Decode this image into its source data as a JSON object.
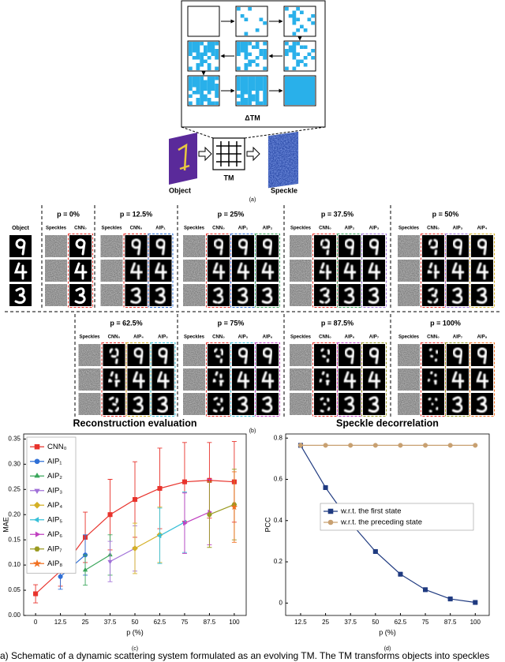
{
  "figure": {
    "a": {
      "delta_label": "ΔTM",
      "object_label": "Object",
      "tm_label": "TM",
      "speckle_label": "Speckle",
      "caption": "(a)"
    },
    "b": {
      "object_label": "Object",
      "caption": "(b)",
      "panels": [
        {
          "title": "p = 0%",
          "columns": [
            {
              "label": "Speckles",
              "color": "#000000"
            },
            {
              "label": "CNN₀",
              "color": "#e8332c"
            }
          ]
        },
        {
          "title": "p = 12.5%",
          "columns": [
            {
              "label": "Speckles",
              "color": "#000000"
            },
            {
              "label": "CNN₀",
              "color": "#e8332c"
            },
            {
              "label": "AIP₁",
              "color": "#2f6fd6"
            }
          ]
        },
        {
          "title": "p = 25%",
          "columns": [
            {
              "label": "Speckles",
              "color": "#000000"
            },
            {
              "label": "CNN₀",
              "color": "#e8332c"
            },
            {
              "label": "AIP₁",
              "color": "#2f6fd6"
            },
            {
              "label": "AIP₂",
              "color": "#3aa65b"
            }
          ]
        },
        {
          "title": "p = 37.5%",
          "columns": [
            {
              "label": "Speckles",
              "color": "#000000"
            },
            {
              "label": "CNN₀",
              "color": "#e8332c"
            },
            {
              "label": "AIP₂",
              "color": "#3aa65b"
            },
            {
              "label": "AIP₃",
              "color": "#a070d8"
            }
          ]
        },
        {
          "title": "p = 50%",
          "columns": [
            {
              "label": "Speckles",
              "color": "#000000"
            },
            {
              "label": "CNN₀",
              "color": "#e8332c"
            },
            {
              "label": "AIP₃",
              "color": "#a070d8"
            },
            {
              "label": "AIP₄",
              "color": "#d4b026"
            }
          ]
        },
        {
          "title": "p = 62.5%",
          "columns": [
            {
              "label": "Speckles",
              "color": "#000000"
            },
            {
              "label": "CNN₀",
              "color": "#e8332c"
            },
            {
              "label": "AIP₄",
              "color": "#d4b026"
            },
            {
              "label": "AIP₅",
              "color": "#38c0d8"
            }
          ]
        },
        {
          "title": "p = 75%",
          "columns": [
            {
              "label": "Speckles",
              "color": "#000000"
            },
            {
              "label": "CNN₀",
              "color": "#e8332c"
            },
            {
              "label": "AIP₅",
              "color": "#38c0d8"
            },
            {
              "label": "AIP₆",
              "color": "#c040c0"
            }
          ]
        },
        {
          "title": "p = 87.5%",
          "columns": [
            {
              "label": "Speckles",
              "color": "#000000"
            },
            {
              "label": "CNN₀",
              "color": "#e8332c"
            },
            {
              "label": "AIP₆",
              "color": "#c040c0"
            },
            {
              "label": "AIP₇",
              "color": "#9a9a20"
            }
          ]
        },
        {
          "title": "p = 100%",
          "columns": [
            {
              "label": "Speckles",
              "color": "#000000"
            },
            {
              "label": "CNN₀",
              "color": "#e8332c"
            },
            {
              "label": "AIP₇",
              "color": "#9a9a20"
            },
            {
              "label": "AIP₈",
              "color": "#f07020"
            }
          ]
        }
      ]
    },
    "caption": "(a) Schematic of a dynamic scattering system formulated as an evolving TM. The TM transforms objects into speckles"
  },
  "chart_data": [
    {
      "type": "line",
      "title": "Reconstruction evaluation",
      "xlabel": "p (%)",
      "ylabel": "MAE",
      "caption": "(c)",
      "x": [
        0,
        12.5,
        25,
        37.5,
        50,
        62.5,
        75,
        87.5,
        100
      ],
      "xlim": [
        -6,
        106
      ],
      "xticks": [
        0,
        12.5,
        25,
        37.5,
        50,
        62.5,
        75,
        87.5,
        100
      ],
      "ylim": [
        0,
        0.36
      ],
      "yticks": [
        {
          "value": 0,
          "label": "0.00"
        },
        0.05,
        {
          "value": 0.1,
          "label": "0.10"
        },
        0.15,
        {
          "value": 0.2,
          "label": "0.20"
        },
        0.25,
        {
          "value": 0.3,
          "label": "0.30"
        },
        0.35
      ],
      "legend": "upper left",
      "series": [
        {
          "name": "CNN₀",
          "color": "#e8332c",
          "marker": "square",
          "values": [
            0.043,
            0.088,
            0.155,
            0.2,
            0.23,
            0.252,
            0.265,
            0.268,
            0.265
          ],
          "errors": [
            0.018,
            0.03,
            0.05,
            0.07,
            0.075,
            0.08,
            0.078,
            0.075,
            0.08
          ]
        },
        {
          "name": "AIP₁",
          "color": "#2f6fd6",
          "marker": "circle",
          "values": [
            null,
            0.077,
            0.12,
            null,
            null,
            null,
            null,
            null,
            null
          ],
          "errors": [
            null,
            0.025,
            0.04,
            null,
            null,
            null,
            null,
            null,
            null
          ]
        },
        {
          "name": "AIP₂",
          "color": "#3aa65b",
          "marker": "triangle-up",
          "values": [
            null,
            null,
            0.09,
            0.12,
            null,
            null,
            null,
            null,
            null
          ],
          "errors": [
            null,
            null,
            0.03,
            0.04,
            null,
            null,
            null,
            null,
            null
          ]
        },
        {
          "name": "AIP₃",
          "color": "#a070d8",
          "marker": "triangle-down",
          "values": [
            null,
            null,
            null,
            0.107,
            0.133,
            null,
            null,
            null,
            null
          ],
          "errors": [
            null,
            null,
            null,
            0.04,
            0.045,
            null,
            null,
            null,
            null
          ]
        },
        {
          "name": "AIP₄",
          "color": "#d4b026",
          "marker": "diamond",
          "values": [
            null,
            null,
            null,
            null,
            0.133,
            0.16,
            null,
            null,
            null
          ],
          "errors": [
            null,
            null,
            null,
            null,
            0.05,
            0.055,
            null,
            null,
            null
          ]
        },
        {
          "name": "AIP₅",
          "color": "#38c0d8",
          "marker": "triangle-left",
          "values": [
            null,
            null,
            null,
            null,
            null,
            0.158,
            0.185,
            null,
            null
          ],
          "errors": [
            null,
            null,
            null,
            null,
            null,
            0.055,
            0.06,
            null,
            null
          ]
        },
        {
          "name": "AIP₆",
          "color": "#c040c0",
          "marker": "triangle-right",
          "values": [
            null,
            null,
            null,
            null,
            null,
            null,
            0.183,
            0.205,
            null
          ],
          "errors": [
            null,
            null,
            null,
            null,
            null,
            null,
            0.06,
            0.065,
            null
          ]
        },
        {
          "name": "AIP₇",
          "color": "#9a9a20",
          "marker": "hexagon",
          "values": [
            null,
            null,
            null,
            null,
            null,
            null,
            null,
            0.2,
            0.22
          ],
          "errors": [
            null,
            null,
            null,
            null,
            null,
            null,
            null,
            0.065,
            0.07
          ]
        },
        {
          "name": "AIP₈",
          "color": "#f07020",
          "marker": "star",
          "values": [
            null,
            null,
            null,
            null,
            null,
            null,
            null,
            null,
            0.215
          ],
          "errors": [
            null,
            null,
            null,
            null,
            null,
            null,
            null,
            null,
            0.07
          ]
        }
      ]
    },
    {
      "type": "line",
      "title": "Speckle decorrelation",
      "xlabel": "p (%)",
      "ylabel": "PCC",
      "caption": "(d)",
      "x": [
        12.5,
        25,
        37.5,
        50,
        62.5,
        75,
        87.5,
        100
      ],
      "xlim": [
        5,
        107
      ],
      "xticks": [
        12.5,
        25,
        37.5,
        50,
        62.5,
        75,
        87.5,
        100
      ],
      "ylim": [
        -0.06,
        0.82
      ],
      "yticks": [
        0,
        0.2,
        0.4,
        0.6,
        0.8
      ],
      "legend": "center right",
      "series": [
        {
          "name": "w.r.t. the first state",
          "color": "#1f3a80",
          "marker": "square",
          "values": [
            0.765,
            0.56,
            0.39,
            0.25,
            0.14,
            0.065,
            0.02,
            0.003
          ]
        },
        {
          "name": "w.r.t. the preceding state",
          "color": "#c8a070",
          "marker": "circle",
          "values": [
            0.765,
            0.765,
            0.765,
            0.765,
            0.765,
            0.765,
            0.765,
            0.765
          ]
        }
      ]
    }
  ]
}
